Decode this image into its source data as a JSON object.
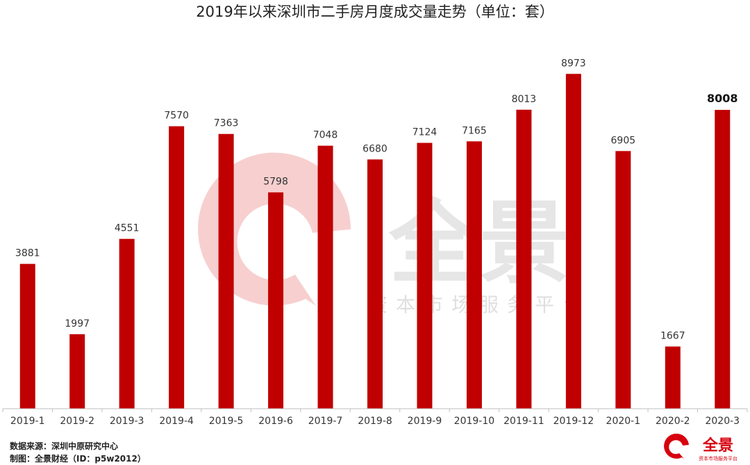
{
  "chart_data": {
    "type": "bar",
    "title": "2019年以来深圳市二手房月度成交量走势（单位：套）",
    "categories": [
      "2019-1",
      "2019-2",
      "2019-3",
      "2019-4",
      "2019-5",
      "2019-6",
      "2019-7",
      "2019-8",
      "2019-9",
      "2019-10",
      "2019-11",
      "2019-12",
      "2020-1",
      "2020-2",
      "2020-3"
    ],
    "values": [
      3881,
      1997,
      4551,
      7570,
      7363,
      5798,
      7048,
      6680,
      7124,
      7165,
      8013,
      8973,
      6905,
      1667,
      8008
    ],
    "ylim": [
      0,
      9500
    ],
    "bar_color": "#c00000",
    "highlight_index": 14,
    "grid": false,
    "legend": "none",
    "xlabel": "",
    "ylabel": ""
  },
  "watermark": {
    "brand": "全景",
    "tagline": "资本市场服务平台",
    "color_circle": "#f6c7c7",
    "color_text": "#d6d6d6"
  },
  "footer": {
    "source": "数据来源：深圳中原研究中心",
    "maker": "制图：全景财经（ID：p5w2012）"
  },
  "logo": {
    "brand": "全景",
    "tagline": "资本市场服务平台",
    "color": "#d7000f"
  }
}
